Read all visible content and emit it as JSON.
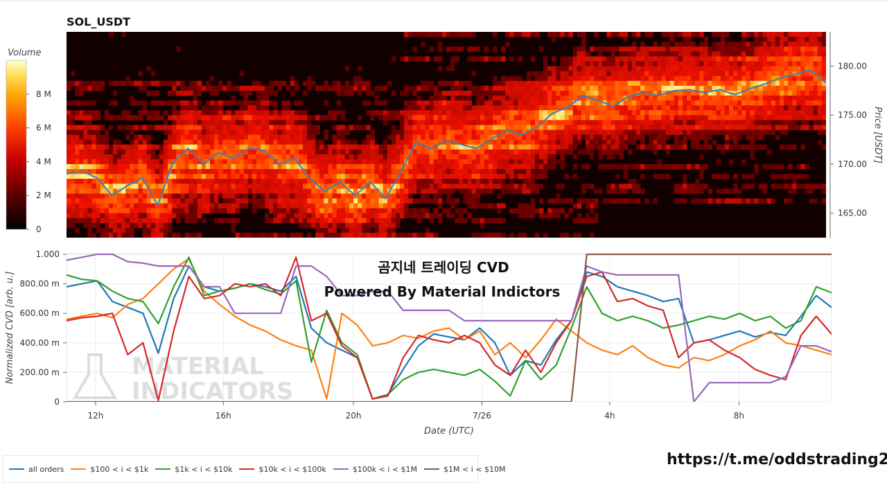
{
  "chart_data": [
    {
      "type": "heatmap",
      "title": "SOL_USDT",
      "ylabel": "Price [USDT]",
      "yticks": [
        "180.00",
        "175.00",
        "170.00",
        "165.00"
      ],
      "ylim": [
        162.5,
        183.5
      ],
      "colorbar": {
        "label": "Volume",
        "ticks": [
          "8 M",
          "6 M",
          "4 M",
          "2 M",
          "0"
        ],
        "range": [
          0,
          10
        ]
      },
      "price_series": {
        "color": "#3a7bbf",
        "x": [
          0,
          2,
          4,
          6,
          8,
          10,
          12,
          14,
          16,
          18,
          20,
          22,
          24,
          26,
          28,
          30,
          32,
          34,
          36,
          38,
          40,
          42,
          44,
          46,
          48,
          50,
          52,
          54,
          56,
          58,
          60,
          62,
          64,
          66,
          68,
          70,
          72,
          74,
          76,
          78,
          80,
          82,
          84,
          86,
          88,
          90,
          92,
          94,
          96,
          98,
          100
        ],
        "values": [
          169.0,
          169.3,
          168.6,
          166.8,
          167.8,
          168.6,
          165.8,
          170.2,
          171.6,
          170.0,
          171.2,
          170.6,
          171.6,
          171.4,
          170.0,
          170.6,
          168.6,
          167.2,
          168.2,
          166.8,
          168.2,
          166.5,
          169.2,
          172.2,
          171.6,
          172.4,
          172.0,
          171.6,
          172.6,
          173.5,
          173.0,
          173.8,
          175.2,
          175.8,
          177.0,
          176.5,
          175.9,
          176.9,
          177.3,
          177.0,
          177.5,
          177.6,
          177.3,
          177.6,
          177.1,
          177.7,
          178.2,
          178.8,
          179.2,
          179.6,
          178.3
        ]
      }
    },
    {
      "type": "line",
      "title": "곰지네 트레이딩 CVD",
      "subtitle": "Powered By Material Indictors",
      "xlabel": "Date (UTC)",
      "ylabel": "Normalized CVD [arb. u.]",
      "x_ticks": [
        "12h",
        "16h",
        "20h",
        "7/26",
        "4h",
        "8h"
      ],
      "y_ticks": [
        "1.000",
        "800.00 m",
        "600.00 m",
        "400.00 m",
        "200.00 m",
        "0"
      ],
      "ylim": [
        0,
        1
      ],
      "x": [
        0,
        2,
        4,
        6,
        8,
        10,
        12,
        14,
        16,
        18,
        20,
        22,
        24,
        26,
        28,
        30,
        32,
        34,
        36,
        38,
        40,
        42,
        44,
        46,
        48,
        50,
        52,
        54,
        56,
        58,
        60,
        62,
        64,
        66,
        68,
        70,
        72,
        74,
        76,
        78,
        80,
        82,
        84,
        86,
        88,
        90,
        92,
        94,
        96,
        98,
        100
      ],
      "series": [
        {
          "name": "all orders",
          "color": "#1f77b4",
          "values": [
            0.78,
            0.8,
            0.82,
            0.68,
            0.64,
            0.6,
            0.33,
            0.7,
            0.92,
            0.78,
            0.75,
            0.77,
            0.8,
            0.78,
            0.75,
            0.85,
            0.5,
            0.4,
            0.35,
            0.3,
            0.02,
            0.05,
            0.22,
            0.38,
            0.46,
            0.44,
            0.42,
            0.5,
            0.4,
            0.18,
            0.28,
            0.25,
            0.42,
            0.55,
            0.88,
            0.85,
            0.78,
            0.75,
            0.72,
            0.68,
            0.7,
            0.4,
            0.42,
            0.45,
            0.48,
            0.44,
            0.47,
            0.45,
            0.58,
            0.72,
            0.64
          ]
        },
        {
          "name": "$100 < i < $1k",
          "color": "#ff7f0e",
          "values": [
            0.56,
            0.58,
            0.6,
            0.57,
            0.66,
            0.7,
            0.8,
            0.9,
            0.97,
            0.75,
            0.66,
            0.58,
            0.52,
            0.48,
            0.42,
            0.38,
            0.35,
            0.02,
            0.6,
            0.52,
            0.38,
            0.4,
            0.45,
            0.43,
            0.48,
            0.5,
            0.42,
            0.48,
            0.32,
            0.4,
            0.3,
            0.42,
            0.56,
            0.48,
            0.4,
            0.35,
            0.32,
            0.38,
            0.3,
            0.25,
            0.23,
            0.3,
            0.28,
            0.32,
            0.38,
            0.42,
            0.48,
            0.4,
            0.38,
            0.35,
            0.32
          ]
        },
        {
          "name": "$1k < i < $10k",
          "color": "#2ca02c",
          "values": [
            0.86,
            0.83,
            0.82,
            0.75,
            0.7,
            0.68,
            0.53,
            0.78,
            0.98,
            0.72,
            0.75,
            0.77,
            0.8,
            0.76,
            0.73,
            0.82,
            0.27,
            0.62,
            0.4,
            0.32,
            0.02,
            0.05,
            0.15,
            0.2,
            0.22,
            0.2,
            0.18,
            0.22,
            0.14,
            0.04,
            0.28,
            0.15,
            0.25,
            0.5,
            0.78,
            0.6,
            0.55,
            0.58,
            0.55,
            0.5,
            0.52,
            0.55,
            0.58,
            0.56,
            0.6,
            0.55,
            0.58,
            0.5,
            0.55,
            0.78,
            0.74
          ]
        },
        {
          "name": "$10k < i < $100k",
          "color": "#d62728",
          "values": [
            0.55,
            0.57,
            0.58,
            0.6,
            0.32,
            0.4,
            0.01,
            0.48,
            0.85,
            0.7,
            0.72,
            0.8,
            0.78,
            0.8,
            0.72,
            0.98,
            0.55,
            0.6,
            0.38,
            0.3,
            0.02,
            0.04,
            0.3,
            0.45,
            0.42,
            0.4,
            0.45,
            0.4,
            0.25,
            0.18,
            0.35,
            0.2,
            0.4,
            0.55,
            0.85,
            0.88,
            0.68,
            0.7,
            0.65,
            0.62,
            0.3,
            0.4,
            0.42,
            0.35,
            0.3,
            0.22,
            0.18,
            0.15,
            0.45,
            0.58,
            0.46
          ]
        },
        {
          "name": "$100k < i < $1M",
          "color": "#9467bd",
          "values": [
            0.96,
            0.98,
            1.0,
            1.0,
            0.95,
            0.94,
            0.92,
            0.92,
            0.92,
            0.78,
            0.78,
            0.6,
            0.6,
            0.6,
            0.6,
            0.92,
            0.92,
            0.85,
            0.72,
            0.72,
            0.75,
            0.75,
            0.62,
            0.62,
            0.62,
            0.62,
            0.55,
            0.55,
            0.55,
            0.55,
            0.55,
            0.55,
            0.55,
            0.55,
            0.92,
            0.88,
            0.86,
            0.86,
            0.86,
            0.86,
            0.86,
            0.0,
            0.13,
            0.13,
            0.13,
            0.13,
            0.13,
            0.17,
            0.38,
            0.38,
            0.34
          ]
        },
        {
          "name": "$1M < i < $10M",
          "color": "#8c564b",
          "values": [
            0,
            0,
            0,
            0,
            0,
            0,
            0,
            0,
            0,
            0,
            0,
            0,
            0,
            0,
            0,
            0,
            0,
            0,
            0,
            0,
            0,
            0,
            0,
            0,
            0,
            0,
            0,
            0,
            0,
            0,
            0,
            0,
            0,
            0,
            1,
            1,
            1,
            1,
            1,
            1,
            1,
            1,
            1,
            1,
            1,
            1,
            1,
            1,
            1,
            1,
            1
          ]
        }
      ]
    }
  ],
  "watermark": {
    "line1": "MATERIAL",
    "line2": "INDICATORS"
  },
  "link_text": "https://t.me/oddstrading2"
}
